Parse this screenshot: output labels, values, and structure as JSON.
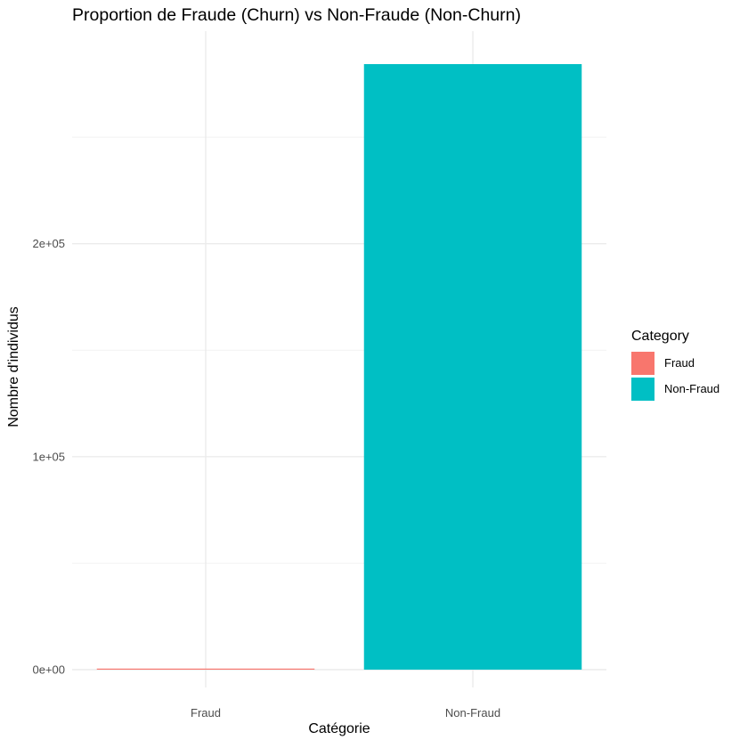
{
  "chart_data": {
    "type": "bar",
    "title": "Proportion de Fraude (Churn) vs Non-Fraude (Non-Churn)",
    "xlabel": "Catégorie",
    "ylabel": "Nombre d'individus",
    "categories": [
      "Fraud",
      "Non-Fraud"
    ],
    "values": [
      492,
      284315
    ],
    "colors": [
      "#F8766D",
      "#00BFC4"
    ],
    "ylim": [
      0,
      284315
    ],
    "yticks": [
      0,
      100000,
      200000
    ],
    "ytick_labels": [
      "0e+00",
      "1e+05",
      "2e+05"
    ],
    "grid": true,
    "legend": {
      "title": "Category",
      "position": "right",
      "items": [
        "Fraud",
        "Non-Fraud"
      ]
    }
  }
}
